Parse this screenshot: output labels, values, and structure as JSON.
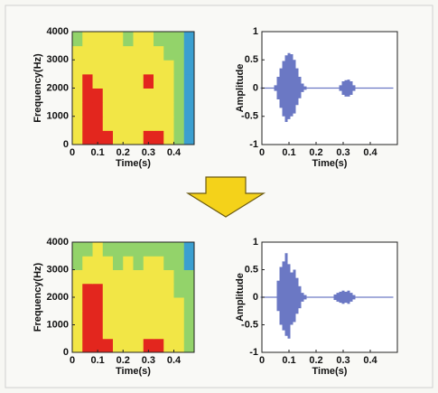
{
  "chart_data": [
    {
      "type": "spectrogram",
      "xlabel": "Time(s)",
      "ylabel": "Frequency(Hz)",
      "xlim": [
        0,
        0.48
      ],
      "ylim": [
        0,
        4000
      ],
      "xticks": [
        0,
        0.1,
        0.2,
        0.3,
        0.4
      ],
      "yticks": [
        0,
        1000,
        2000,
        3000,
        4000
      ],
      "colors": [
        "#3b9fd0",
        "#93d36a",
        "#f2e646",
        "#e3261e"
      ],
      "values": [
        [
          2,
          3,
          3,
          3,
          2,
          2,
          2,
          3,
          3,
          2,
          1,
          0
        ],
        [
          2,
          3,
          3,
          2,
          2,
          2,
          2,
          2,
          2,
          2,
          1,
          0
        ],
        [
          2,
          3,
          3,
          2,
          2,
          2,
          2,
          2,
          2,
          2,
          1,
          0
        ],
        [
          2,
          3,
          3,
          2,
          2,
          2,
          2,
          2,
          2,
          2,
          1,
          0
        ],
        [
          2,
          3,
          2,
          2,
          2,
          2,
          2,
          3,
          2,
          2,
          1,
          0
        ],
        [
          2,
          2,
          2,
          2,
          2,
          2,
          2,
          2,
          2,
          2,
          1,
          0
        ],
        [
          2,
          2,
          2,
          2,
          2,
          2,
          2,
          2,
          2,
          1,
          1,
          0
        ],
        [
          1,
          2,
          2,
          2,
          2,
          1,
          2,
          2,
          1,
          1,
          1,
          0
        ]
      ]
    },
    {
      "type": "waveform",
      "xlabel": "Time(s)",
      "ylabel": "Amplitude",
      "color": "#3a4bb0",
      "xlim": [
        0,
        0.5
      ],
      "ylim": [
        -1,
        1
      ],
      "xticks": [
        0,
        0.1,
        0.2,
        0.3,
        0.4
      ],
      "yticks": [
        -1,
        -0.5,
        0,
        0.5,
        1
      ],
      "x": [
        0,
        0.01,
        0.02,
        0.03,
        0.04,
        0.05,
        0.06,
        0.07,
        0.08,
        0.09,
        0.1,
        0.11,
        0.12,
        0.13,
        0.14,
        0.15,
        0.16,
        0.17,
        0.18,
        0.19,
        0.2,
        0.21,
        0.22,
        0.23,
        0.24,
        0.25,
        0.26,
        0.27,
        0.28,
        0.29,
        0.3,
        0.31,
        0.32,
        0.33,
        0.34,
        0.35,
        0.36,
        0.37,
        0.38,
        0.39,
        0.4,
        0.41,
        0.42,
        0.43,
        0.44,
        0.45,
        0.46,
        0.47,
        0.48
      ],
      "upper": [
        0.01,
        0.01,
        0.01,
        0.01,
        0.01,
        0.05,
        0.2,
        0.35,
        0.48,
        0.58,
        0.62,
        0.6,
        0.5,
        0.35,
        0.2,
        0.08,
        0.03,
        0.01,
        0.01,
        0.01,
        0.01,
        0.01,
        0.01,
        0.01,
        0.01,
        0.01,
        0.01,
        0.01,
        0.01,
        0.05,
        0.12,
        0.14,
        0.15,
        0.12,
        0.05,
        0.01,
        0.01,
        0.01,
        0.01,
        0.01,
        0.01,
        0.01,
        0.01,
        0.01,
        0.01,
        0.01,
        0.01,
        0.01,
        0.01
      ],
      "lower": [
        -0.01,
        -0.01,
        -0.01,
        -0.01,
        -0.01,
        -0.05,
        -0.2,
        -0.35,
        -0.5,
        -0.6,
        -0.55,
        -0.5,
        -0.45,
        -0.3,
        -0.18,
        -0.07,
        -0.03,
        -0.01,
        -0.01,
        -0.01,
        -0.01,
        -0.01,
        -0.01,
        -0.01,
        -0.01,
        -0.01,
        -0.01,
        -0.01,
        -0.01,
        -0.05,
        -0.12,
        -0.15,
        -0.15,
        -0.12,
        -0.05,
        -0.01,
        -0.01,
        -0.01,
        -0.01,
        -0.01,
        -0.01,
        -0.01,
        -0.01,
        -0.01,
        -0.01,
        -0.01,
        -0.01,
        -0.01,
        -0.01
      ]
    },
    {
      "type": "spectrogram",
      "xlabel": "Time(s)",
      "ylabel": "Frequency(Hz)",
      "xlim": [
        0,
        0.48
      ],
      "ylim": [
        0,
        4000
      ],
      "xticks": [
        0,
        0.1,
        0.2,
        0.3,
        0.4
      ],
      "yticks": [
        0,
        1000,
        2000,
        3000,
        4000
      ],
      "colors": [
        "#3b9fd0",
        "#93d36a",
        "#f2e646",
        "#e3261e"
      ],
      "values": [
        [
          2,
          3,
          3,
          3,
          2,
          2,
          2,
          3,
          3,
          2,
          2,
          1
        ],
        [
          2,
          3,
          3,
          2,
          2,
          2,
          2,
          2,
          2,
          2,
          2,
          1
        ],
        [
          2,
          3,
          3,
          2,
          2,
          2,
          2,
          2,
          2,
          2,
          2,
          1
        ],
        [
          2,
          3,
          3,
          2,
          2,
          2,
          2,
          2,
          2,
          2,
          2,
          1
        ],
        [
          2,
          3,
          3,
          2,
          2,
          2,
          2,
          2,
          2,
          2,
          1,
          1
        ],
        [
          2,
          2,
          2,
          2,
          2,
          2,
          2,
          2,
          2,
          2,
          1,
          1
        ],
        [
          1,
          2,
          2,
          2,
          1,
          2,
          1,
          2,
          2,
          1,
          1,
          0
        ],
        [
          1,
          1,
          2,
          1,
          1,
          1,
          1,
          1,
          1,
          1,
          1,
          0
        ]
      ]
    },
    {
      "type": "waveform",
      "xlabel": "Time(s)",
      "ylabel": "Amplitude",
      "color": "#3a4bb0",
      "xlim": [
        0,
        0.5
      ],
      "ylim": [
        -1,
        1
      ],
      "xticks": [
        0,
        0.1,
        0.2,
        0.3,
        0.4
      ],
      "yticks": [
        -1,
        -0.5,
        0,
        0.5,
        1
      ],
      "x": [
        0,
        0.01,
        0.02,
        0.03,
        0.04,
        0.05,
        0.06,
        0.07,
        0.08,
        0.09,
        0.1,
        0.11,
        0.12,
        0.13,
        0.14,
        0.15,
        0.16,
        0.17,
        0.18,
        0.19,
        0.2,
        0.21,
        0.22,
        0.23,
        0.24,
        0.25,
        0.26,
        0.27,
        0.28,
        0.29,
        0.3,
        0.31,
        0.32,
        0.33,
        0.34,
        0.35,
        0.36,
        0.37,
        0.38,
        0.39,
        0.4,
        0.41,
        0.42,
        0.43,
        0.44,
        0.45,
        0.46,
        0.47,
        0.48
      ],
      "upper": [
        0.01,
        0.01,
        0.01,
        0.01,
        0.01,
        0.01,
        0.3,
        0.55,
        0.65,
        0.8,
        0.6,
        0.45,
        0.5,
        0.35,
        0.2,
        0.08,
        0.04,
        0.01,
        0.01,
        0.01,
        0.01,
        0.01,
        0.01,
        0.01,
        0.01,
        0.01,
        0.01,
        0.05,
        0.08,
        0.1,
        0.12,
        0.1,
        0.12,
        0.08,
        0.04,
        0.01,
        0.01,
        0.01,
        0.01,
        0.01,
        0.01,
        0.01,
        0.01,
        0.01,
        0.01,
        0.01,
        0.01,
        0.01,
        0.01
      ],
      "lower": [
        -0.01,
        -0.01,
        -0.01,
        -0.01,
        -0.01,
        -0.01,
        -0.25,
        -0.5,
        -0.6,
        -0.7,
        -0.75,
        -0.5,
        -0.45,
        -0.3,
        -0.2,
        -0.08,
        -0.04,
        -0.01,
        -0.01,
        -0.01,
        -0.01,
        -0.01,
        -0.01,
        -0.01,
        -0.01,
        -0.01,
        -0.01,
        -0.05,
        -0.08,
        -0.1,
        -0.12,
        -0.1,
        -0.12,
        -0.08,
        -0.04,
        -0.01,
        -0.01,
        -0.01,
        -0.01,
        -0.01,
        -0.01,
        -0.01,
        -0.01,
        -0.01,
        -0.01,
        -0.01,
        -0.01,
        -0.01,
        -0.01
      ]
    }
  ]
}
